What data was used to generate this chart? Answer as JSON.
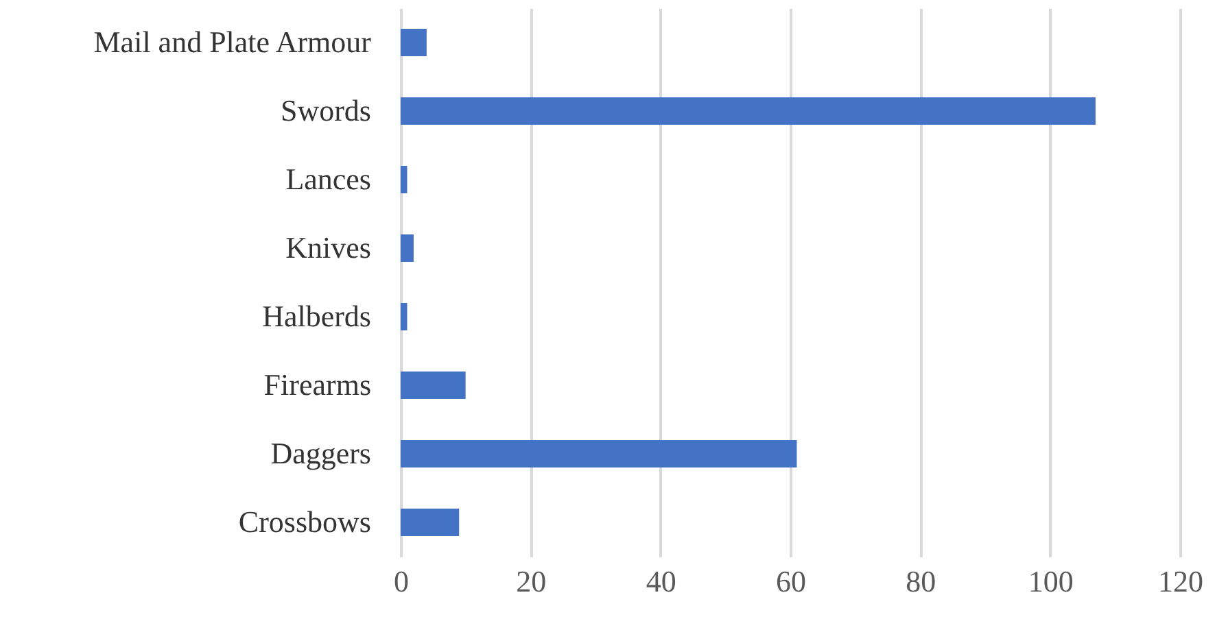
{
  "chart_data": {
    "type": "bar",
    "orientation": "horizontal",
    "categories": [
      "Mail and Plate Armour",
      "Swords",
      "Lances",
      "Knives",
      "Halberds",
      "Firearms",
      "Daggers",
      "Crossbows"
    ],
    "values": [
      4,
      107,
      1,
      2,
      1,
      10,
      61,
      9
    ],
    "color": "#4472c4",
    "xlim": [
      0,
      120
    ],
    "xticks": [
      0,
      20,
      40,
      60,
      80,
      100,
      120
    ],
    "grid": "x"
  }
}
